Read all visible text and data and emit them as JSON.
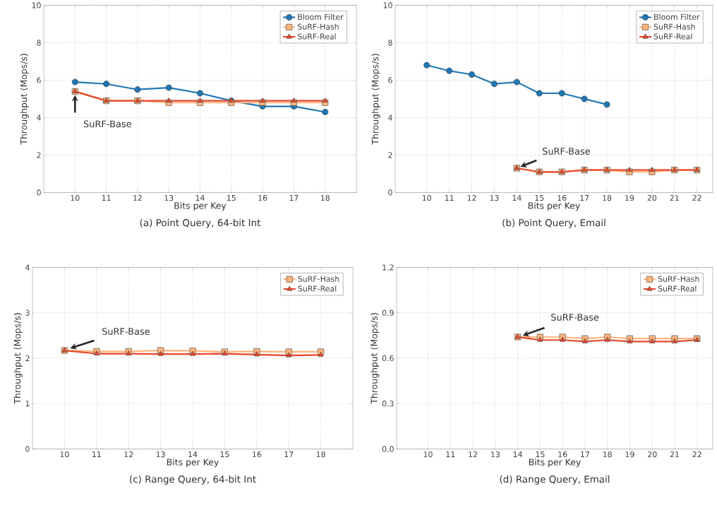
{
  "chart_data": [
    {
      "type": "line",
      "title": "(a) Point Query, 64-bit Int",
      "xlabel": "Bits per Key",
      "ylabel": "Throughput (Mops/s)",
      "xlim": [
        9,
        19
      ],
      "xticks": [
        10,
        11,
        12,
        13,
        14,
        15,
        16,
        17,
        18
      ],
      "ylim": [
        0,
        10
      ],
      "yticks": [
        0,
        2,
        4,
        6,
        8,
        10
      ],
      "grid": true,
      "legend": "top right",
      "series": [
        {
          "name": "Bloom Filter",
          "color": "#1f77b4",
          "marker": "circle",
          "x": [
            10,
            11,
            12,
            13,
            14,
            15,
            16,
            17,
            18
          ],
          "values": [
            5.9,
            5.8,
            5.5,
            5.6,
            5.3,
            4.9,
            4.6,
            4.6,
            4.3
          ]
        },
        {
          "name": "SuRF-Hash",
          "color": "#fdb57e",
          "marker": "square",
          "x": [
            10,
            11,
            12,
            13,
            14,
            15,
            16,
            17,
            18
          ],
          "values": [
            5.4,
            4.9,
            4.9,
            4.8,
            4.8,
            4.8,
            4.8,
            4.8,
            4.8
          ]
        },
        {
          "name": "SuRF-Real",
          "color": "#e8472a",
          "marker": "triangle",
          "x": [
            10,
            11,
            12,
            13,
            14,
            15,
            16,
            17,
            18
          ],
          "values": [
            5.4,
            4.9,
            4.9,
            4.9,
            4.9,
            4.9,
            4.9,
            4.9,
            4.9
          ]
        }
      ],
      "annotations": [
        "SuRF-Base"
      ]
    },
    {
      "type": "line",
      "title": "(b) Point Query, Email",
      "xlabel": "Bits per Key",
      "ylabel": "Throughput (Mops/s)",
      "xlim": [
        8.6,
        22.7
      ],
      "xticks": [
        10,
        11,
        12,
        13,
        14,
        15,
        16,
        17,
        18,
        19,
        20,
        21,
        22
      ],
      "ylim": [
        0,
        10
      ],
      "yticks": [
        0,
        2,
        4,
        6,
        8,
        10
      ],
      "grid": true,
      "legend": "top right",
      "series": [
        {
          "name": "Bloom Filter",
          "color": "#1f77b4",
          "marker": "circle",
          "x": [
            10,
            11,
            12,
            13,
            14,
            15,
            16,
            17,
            18
          ],
          "values": [
            6.8,
            6.5,
            6.3,
            5.8,
            5.9,
            5.3,
            5.3,
            5.0,
            4.7
          ]
        },
        {
          "name": "SuRF-Hash",
          "color": "#fdb57e",
          "marker": "square",
          "x": [
            14,
            15,
            16,
            17,
            18,
            19,
            20,
            21,
            22
          ],
          "values": [
            1.3,
            1.1,
            1.1,
            1.2,
            1.2,
            1.1,
            1.1,
            1.2,
            1.2
          ]
        },
        {
          "name": "SuRF-Real",
          "color": "#e8472a",
          "marker": "triangle",
          "x": [
            14,
            15,
            16,
            17,
            18,
            19,
            20,
            21,
            22
          ],
          "values": [
            1.3,
            1.1,
            1.1,
            1.2,
            1.2,
            1.2,
            1.2,
            1.2,
            1.2
          ]
        }
      ],
      "annotations": [
        "SuRF-Base"
      ]
    },
    {
      "type": "line",
      "title": "(c) Range Query, 64-bit Int",
      "xlabel": "Bits per Key",
      "ylabel": "Throughput (Mops/s)",
      "xlim": [
        9,
        19
      ],
      "xticks": [
        10,
        11,
        12,
        13,
        14,
        15,
        16,
        17,
        18
      ],
      "ylim": [
        0,
        4
      ],
      "yticks": [
        0,
        1,
        2,
        3,
        4
      ],
      "grid": true,
      "legend": "top right",
      "series": [
        {
          "name": "SuRF-Hash",
          "color": "#fdb57e",
          "marker": "square",
          "x": [
            10,
            11,
            12,
            13,
            14,
            15,
            16,
            17,
            18
          ],
          "values": [
            2.17,
            2.15,
            2.15,
            2.17,
            2.16,
            2.14,
            2.15,
            2.14,
            2.14
          ]
        },
        {
          "name": "SuRF-Real",
          "color": "#e8472a",
          "marker": "triangle",
          "x": [
            10,
            11,
            12,
            13,
            14,
            15,
            16,
            17,
            18
          ],
          "values": [
            2.17,
            2.1,
            2.1,
            2.09,
            2.09,
            2.1,
            2.08,
            2.06,
            2.07
          ]
        }
      ],
      "annotations": [
        "SuRF-Base"
      ]
    },
    {
      "type": "line",
      "title": "(d) Range Query, Email",
      "xlabel": "Bits per Key",
      "ylabel": "Throughput (Mops/s)",
      "xlim": [
        8.6,
        22.7
      ],
      "xticks": [
        10,
        11,
        12,
        13,
        14,
        15,
        16,
        17,
        18,
        19,
        20,
        21,
        22
      ],
      "ylim": [
        0,
        1.2
      ],
      "yticks": [
        {
          "value": 0,
          "label": "0.0"
        },
        {
          "value": 0.3,
          "label": "0.3"
        },
        {
          "value": 0.6,
          "label": "0.6"
        },
        {
          "value": 0.9,
          "label": "0.9"
        },
        {
          "value": 1.2,
          "label": "1.2"
        }
      ],
      "grid": true,
      "legend": "top right",
      "series": [
        {
          "name": "SuRF-Hash",
          "color": "#fdb57e",
          "marker": "square",
          "x": [
            14,
            15,
            16,
            17,
            18,
            19,
            20,
            21,
            22
          ],
          "values": [
            0.74,
            0.74,
            0.74,
            0.73,
            0.74,
            0.73,
            0.73,
            0.73,
            0.73
          ]
        },
        {
          "name": "SuRF-Real",
          "color": "#e8472a",
          "marker": "triangle",
          "x": [
            14,
            15,
            16,
            17,
            18,
            19,
            20,
            21,
            22
          ],
          "values": [
            0.74,
            0.72,
            0.72,
            0.71,
            0.72,
            0.71,
            0.71,
            0.71,
            0.72
          ]
        }
      ],
      "annotations": [
        "SuRF-Base"
      ]
    }
  ]
}
